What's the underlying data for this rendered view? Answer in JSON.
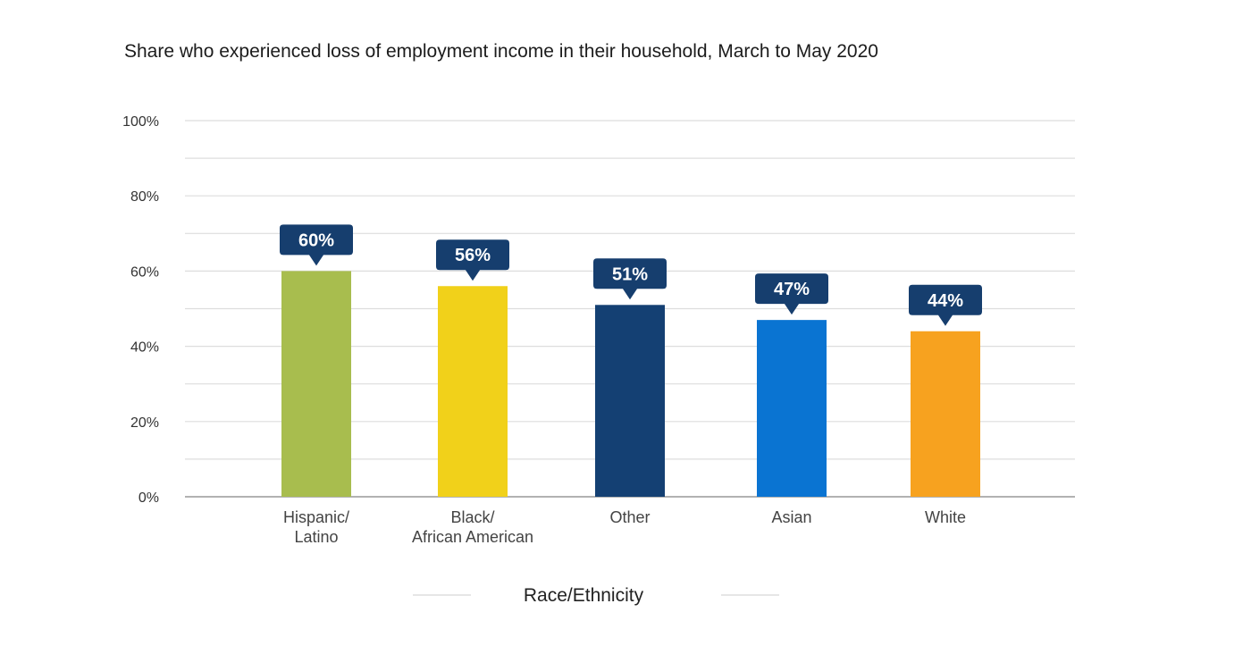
{
  "chart_data": {
    "type": "bar",
    "title": "Share who experienced loss of employment income in their household, March to May 2020",
    "xlabel": "Race/Ethnicity",
    "ylabel": "",
    "ylim": [
      0,
      100
    ],
    "yticks": [
      "100%",
      "80%",
      "60%",
      "40%",
      "20%",
      "0%"
    ],
    "ytick_values": [
      100,
      80,
      60,
      40,
      20,
      0
    ],
    "grid": true,
    "legend": "none",
    "categories": [
      [
        "Hispanic/",
        "Latino"
      ],
      [
        "Black/",
        "African American"
      ],
      [
        "Other"
      ],
      [
        "Asian"
      ],
      [
        "White"
      ]
    ],
    "values": [
      60,
      56,
      51,
      47,
      44
    ],
    "data_labels": [
      "60%",
      "56%",
      "51%",
      "47%",
      "44%"
    ],
    "colors": [
      "#a8bd4e",
      "#f1d11a",
      "#144073",
      "#0a74d2",
      "#f7a21f"
    ],
    "label_box_color": "#163e6e",
    "grid_color": "#dddddd",
    "axis_color": "#999999"
  }
}
